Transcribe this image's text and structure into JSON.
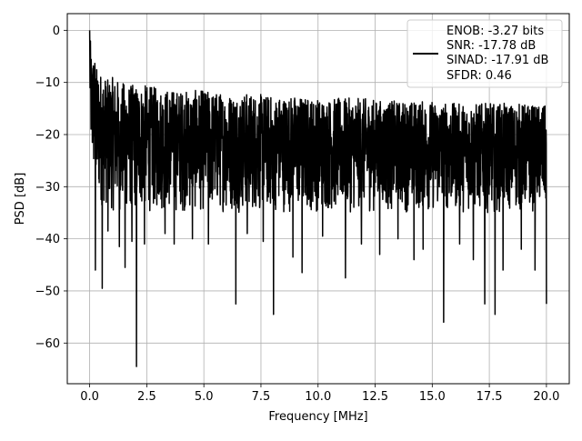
{
  "chart_data": {
    "type": "line",
    "xlabel": "Frequency [MHz]",
    "ylabel": "PSD [dB]",
    "xlim": [
      -0.98,
      21.0
    ],
    "ylim": [
      -67.8,
      3.2
    ],
    "x_ticks": [
      0.0,
      2.5,
      5.0,
      7.5,
      10.0,
      12.5,
      15.0,
      17.5,
      20.0
    ],
    "x_tick_labels": [
      "0.0",
      "2.5",
      "5.0",
      "7.5",
      "10.0",
      "12.5",
      "15.0",
      "17.5",
      "20.0"
    ],
    "y_ticks": [
      0,
      -10,
      -20,
      -30,
      -40,
      -50,
      -60
    ],
    "y_tick_labels": [
      "0",
      "−10",
      "−20",
      "−30",
      "−40",
      "−50",
      "−60"
    ],
    "grid": true,
    "legend_position": "top-right",
    "legend_lines": [
      "ENOB: -3.27 bits",
      "SNR: -17.78 dB",
      "SINAD: -17.91 dB",
      "SFDR: 0.46"
    ],
    "series": [
      {
        "color": "#000000",
        "envelope": {
          "x": [
            0.0,
            0.05,
            0.1,
            0.2,
            0.3,
            0.5,
            0.8,
            1.0,
            1.5,
            2.0,
            2.5,
            3.0,
            4.0,
            5.0,
            6.0,
            7.0,
            8.0,
            9.0,
            10.0,
            11.0,
            12.0,
            13.0,
            14.0,
            15.0,
            16.0,
            17.0,
            18.0,
            19.0,
            20.0
          ],
          "upper": [
            0.0,
            -3.0,
            -5.0,
            -4.0,
            -7.0,
            -8.0,
            -9.5,
            -9.0,
            -10.0,
            -10.5,
            -10.5,
            -11.0,
            -11.5,
            -11.5,
            -12.0,
            -12.0,
            -12.5,
            -12.5,
            -13.0,
            -13.0,
            -13.0,
            -13.5,
            -13.5,
            -13.5,
            -14.0,
            -14.0,
            -14.0,
            -14.0,
            -14.5
          ],
          "lower": [
            -15.0,
            -24.0,
            -28.0,
            -30.0,
            -33.0,
            -34.0,
            -34.0,
            -35.0,
            -35.0,
            -35.0,
            -35.0,
            -35.0,
            -35.0,
            -35.0,
            -35.0,
            -35.0,
            -35.0,
            -35.0,
            -35.0,
            -35.0,
            -35.0,
            -35.0,
            -35.0,
            -35.0,
            -35.0,
            -35.0,
            -35.0,
            -35.0,
            -35.0
          ]
        },
        "dips": [
          {
            "x": 0.25,
            "y": -46.0
          },
          {
            "x": 0.55,
            "y": -49.5
          },
          {
            "x": 0.8,
            "y": -38.5
          },
          {
            "x": 1.3,
            "y": -41.5
          },
          {
            "x": 1.55,
            "y": -45.5
          },
          {
            "x": 1.85,
            "y": -40.5
          },
          {
            "x": 2.05,
            "y": -64.5
          },
          {
            "x": 2.4,
            "y": -41.0
          },
          {
            "x": 3.3,
            "y": -39.0
          },
          {
            "x": 3.7,
            "y": -41.0
          },
          {
            "x": 4.5,
            "y": -40.0
          },
          {
            "x": 5.2,
            "y": -41.0
          },
          {
            "x": 6.4,
            "y": -52.5
          },
          {
            "x": 6.9,
            "y": -39.0
          },
          {
            "x": 7.6,
            "y": -40.5
          },
          {
            "x": 8.05,
            "y": -54.5
          },
          {
            "x": 8.9,
            "y": -43.5
          },
          {
            "x": 9.3,
            "y": -46.5
          },
          {
            "x": 10.2,
            "y": -39.5
          },
          {
            "x": 11.2,
            "y": -47.5
          },
          {
            "x": 11.9,
            "y": -41.0
          },
          {
            "x": 12.7,
            "y": -43.0
          },
          {
            "x": 13.5,
            "y": -40.0
          },
          {
            "x": 14.2,
            "y": -44.0
          },
          {
            "x": 14.6,
            "y": -42.0
          },
          {
            "x": 15.5,
            "y": -56.0
          },
          {
            "x": 16.2,
            "y": -41.0
          },
          {
            "x": 16.8,
            "y": -44.0
          },
          {
            "x": 17.3,
            "y": -52.5
          },
          {
            "x": 17.75,
            "y": -54.5
          },
          {
            "x": 18.1,
            "y": -46.0
          },
          {
            "x": 18.9,
            "y": -42.0
          },
          {
            "x": 19.5,
            "y": -46.0
          },
          {
            "x": 20.0,
            "y": -52.5
          }
        ]
      }
    ]
  }
}
